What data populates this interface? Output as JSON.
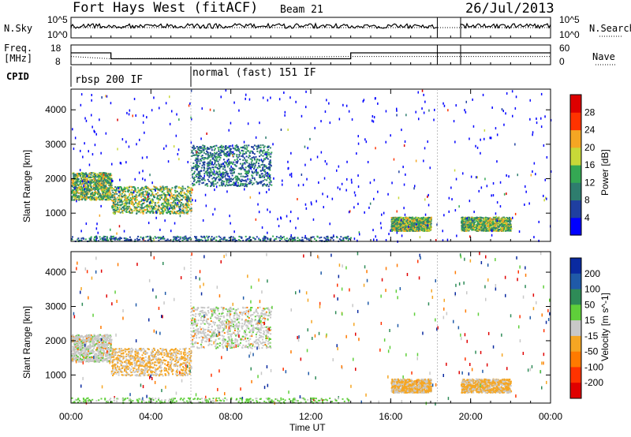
{
  "header": {
    "title": "Fort Hays West (fitACF)",
    "beam": "Beam 21",
    "date": "26/Jul/2013"
  },
  "labels": {
    "nsky": "N.Sky",
    "nsearch": "N.Search",
    "freq_line1": "Freq.",
    "freq_line2": "[MHz]",
    "nave": "Nave",
    "cpid": "CPID",
    "cpid_mode1": "rbsp 200 IF",
    "cpid_mode2": "normal (fast) 151 IF",
    "noise_left_top": "10^5",
    "noise_left_bot": "10^0",
    "noise_right_top": "10^5",
    "noise_right_bot": "10^0",
    "freq_left_top": "18",
    "freq_left_bot": "8",
    "nave_right_top": "60",
    "nave_right_bot": "0"
  },
  "chart_data": [
    {
      "type": "heatmap",
      "name": "power",
      "xlabel": "Time UT",
      "ylabel": "Slant Range [km]",
      "xlim": [
        "00:00",
        "24:00"
      ],
      "ylim": [
        180,
        4600
      ],
      "x_ticks": [
        "00:00",
        "04:00",
        "08:00",
        "12:00",
        "16:00",
        "20:00",
        "00:00"
      ],
      "y_ticks": [
        1000,
        2000,
        3000,
        4000
      ],
      "colorbar": {
        "label": "Power [dB]",
        "ticks": [
          4,
          8,
          12,
          16,
          20,
          24,
          28
        ],
        "colors": [
          "#0000ff",
          "#1f3fa0",
          "#2e7d6e",
          "#34a853",
          "#c8d838",
          "#f5a623",
          "#ff3300",
          "#dd0000"
        ]
      },
      "features": [
        {
          "time": "00:00-02:00",
          "range_km": [
            1400,
            2200
          ],
          "power_db": [
            8,
            24
          ]
        },
        {
          "time": "02:00-06:00",
          "range_km": [
            1000,
            1800
          ],
          "power_db": [
            8,
            24
          ]
        },
        {
          "time": "06:00-10:00",
          "range_km": [
            1800,
            3000
          ],
          "power_db": [
            4,
            16
          ]
        },
        {
          "time": "16:00-18:00",
          "range_km": [
            500,
            900
          ],
          "power_db": [
            8,
            24
          ]
        },
        {
          "time": "19:30-22:00",
          "range_km": [
            500,
            900
          ],
          "power_db": [
            8,
            24
          ]
        }
      ]
    },
    {
      "type": "heatmap",
      "name": "velocity",
      "xlabel": "Time UT",
      "ylabel": "Slant Range [km]",
      "xlim": [
        "00:00",
        "24:00"
      ],
      "ylim": [
        180,
        4600
      ],
      "x_ticks": [
        "00:00",
        "04:00",
        "08:00",
        "12:00",
        "16:00",
        "20:00",
        "00:00"
      ],
      "y_ticks": [
        1000,
        2000,
        3000,
        4000
      ],
      "colorbar": {
        "label": "Velocity [m s^-1]",
        "ticks": [
          200,
          100,
          50,
          15,
          -15,
          -50,
          -100,
          -200
        ],
        "colors": [
          "#0a2aa0",
          "#1f5aa8",
          "#2e8b57",
          "#5fcf3a",
          "#c8c8c8",
          "#f5a623",
          "#ff7a00",
          "#ff3300",
          "#e00000"
        ]
      }
    },
    {
      "type": "line",
      "name": "noise",
      "series": [
        {
          "name": "N.Sky",
          "style": "solid"
        },
        {
          "name": "N.Search",
          "style": "dotted"
        }
      ]
    },
    {
      "type": "line",
      "name": "freq_nave",
      "series": [
        {
          "name": "Freq.",
          "style": "solid",
          "x": [
            "00:00",
            "02:00",
            "02:00",
            "14:00",
            "14:00",
            "18:20",
            "19:30",
            "24:00"
          ],
          "y": [
            14,
            14,
            11,
            11,
            14,
            14,
            14,
            14
          ]
        },
        {
          "name": "Nave",
          "style": "dotted",
          "x": [
            "00:00",
            "02:00",
            "14:00",
            "18:20",
            "19:30",
            "24:00"
          ],
          "y": [
            25,
            18,
            25,
            25,
            25,
            25
          ]
        }
      ]
    }
  ],
  "colors": {
    "power_blue": "#0000ff",
    "power_green": "#2e7d6e",
    "power_yellow": "#c8d838",
    "power_orange": "#f5a623",
    "velocity_gray": "#c8c8c8",
    "velocity_orange": "#f5a623",
    "velocity_green": "#5fcf3a",
    "velocity_blue": "#0a2aa0"
  }
}
